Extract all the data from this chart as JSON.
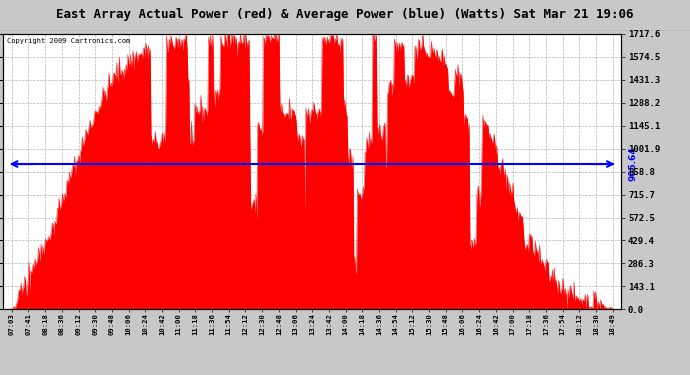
{
  "title": "East Array Actual Power (red) & Average Power (blue) (Watts) Sat Mar 21 19:06",
  "copyright": "Copyright 2009 Cartronics.com",
  "avg_power": 905.64,
  "ymax": 1717.6,
  "ymin": 0.0,
  "yticks": [
    0.0,
    143.1,
    286.3,
    429.4,
    572.5,
    715.7,
    858.8,
    1001.9,
    1145.1,
    1288.2,
    1431.3,
    1574.5,
    1717.6
  ],
  "bg_color": "#c8c8c8",
  "plot_bg_color": "#ffffff",
  "fill_color": "#ff0000",
  "line_color": "#ff0000",
  "avg_line_color": "#0000ff",
  "grid_color": "#a0a0a0",
  "title_bg_color": "#ffffff",
  "x_times": [
    "07:03",
    "07:41",
    "08:18",
    "08:36",
    "09:12",
    "09:30",
    "09:48",
    "10:06",
    "10:24",
    "10:42",
    "11:00",
    "11:18",
    "11:36",
    "11:54",
    "12:12",
    "12:30",
    "12:48",
    "13:06",
    "13:24",
    "13:42",
    "14:00",
    "14:18",
    "14:36",
    "14:54",
    "15:12",
    "15:30",
    "15:48",
    "16:06",
    "16:24",
    "16:42",
    "17:00",
    "17:18",
    "17:36",
    "17:54",
    "18:12",
    "18:30",
    "18:49"
  ]
}
